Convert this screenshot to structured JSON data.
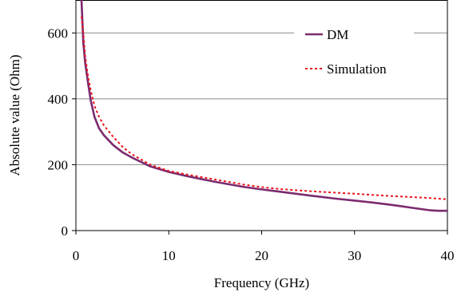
{
  "chart_data": {
    "type": "line",
    "xlabel": "Frequency (GHz)",
    "ylabel": "Absolute value (Ohm)",
    "xlim": [
      0,
      40
    ],
    "ylim": [
      0,
      700
    ],
    "x_ticks": [
      "0",
      "10",
      "20",
      "30",
      "40"
    ],
    "y_ticks": [
      "0",
      "200",
      "400",
      "600"
    ],
    "grid": "horizontal",
    "legend_position": "top-right",
    "series": [
      {
        "name": "DM",
        "color": "#7b2a6e",
        "style": "solid",
        "x": [
          0.6,
          0.8,
          1.0,
          1.3,
          1.6,
          2.0,
          2.5,
          3.0,
          4.0,
          5.0,
          6.0,
          8.0,
          10.0,
          12.0,
          15.0,
          18.0,
          20.0,
          22.0,
          25.0,
          28.0,
          30.0,
          32.0,
          34.0,
          36.0,
          38.0,
          39.0,
          40.0
        ],
        "y": [
          700,
          570,
          510,
          450,
          395,
          345,
          310,
          290,
          260,
          238,
          222,
          195,
          178,
          165,
          148,
          133,
          125,
          118,
          107,
          97,
          91,
          85,
          78,
          70,
          62,
          60,
          60
        ]
      },
      {
        "name": "Simulation",
        "color": "#e8141b",
        "style": "dotted",
        "x": [
          0.6,
          0.8,
          1.0,
          1.3,
          1.6,
          2.0,
          2.5,
          3.0,
          4.0,
          5.0,
          6.0,
          8.0,
          10.0,
          12.0,
          15.0,
          18.0,
          20.0,
          22.0,
          25.0,
          28.0,
          30.0,
          32.0,
          34.0,
          36.0,
          38.0,
          40.0
        ],
        "y": [
          650,
          600,
          530,
          470,
          425,
          378,
          345,
          320,
          285,
          255,
          232,
          200,
          181,
          170,
          155,
          140,
          132,
          126,
          120,
          115,
          112,
          108,
          105,
          102,
          99,
          95
        ]
      }
    ]
  }
}
